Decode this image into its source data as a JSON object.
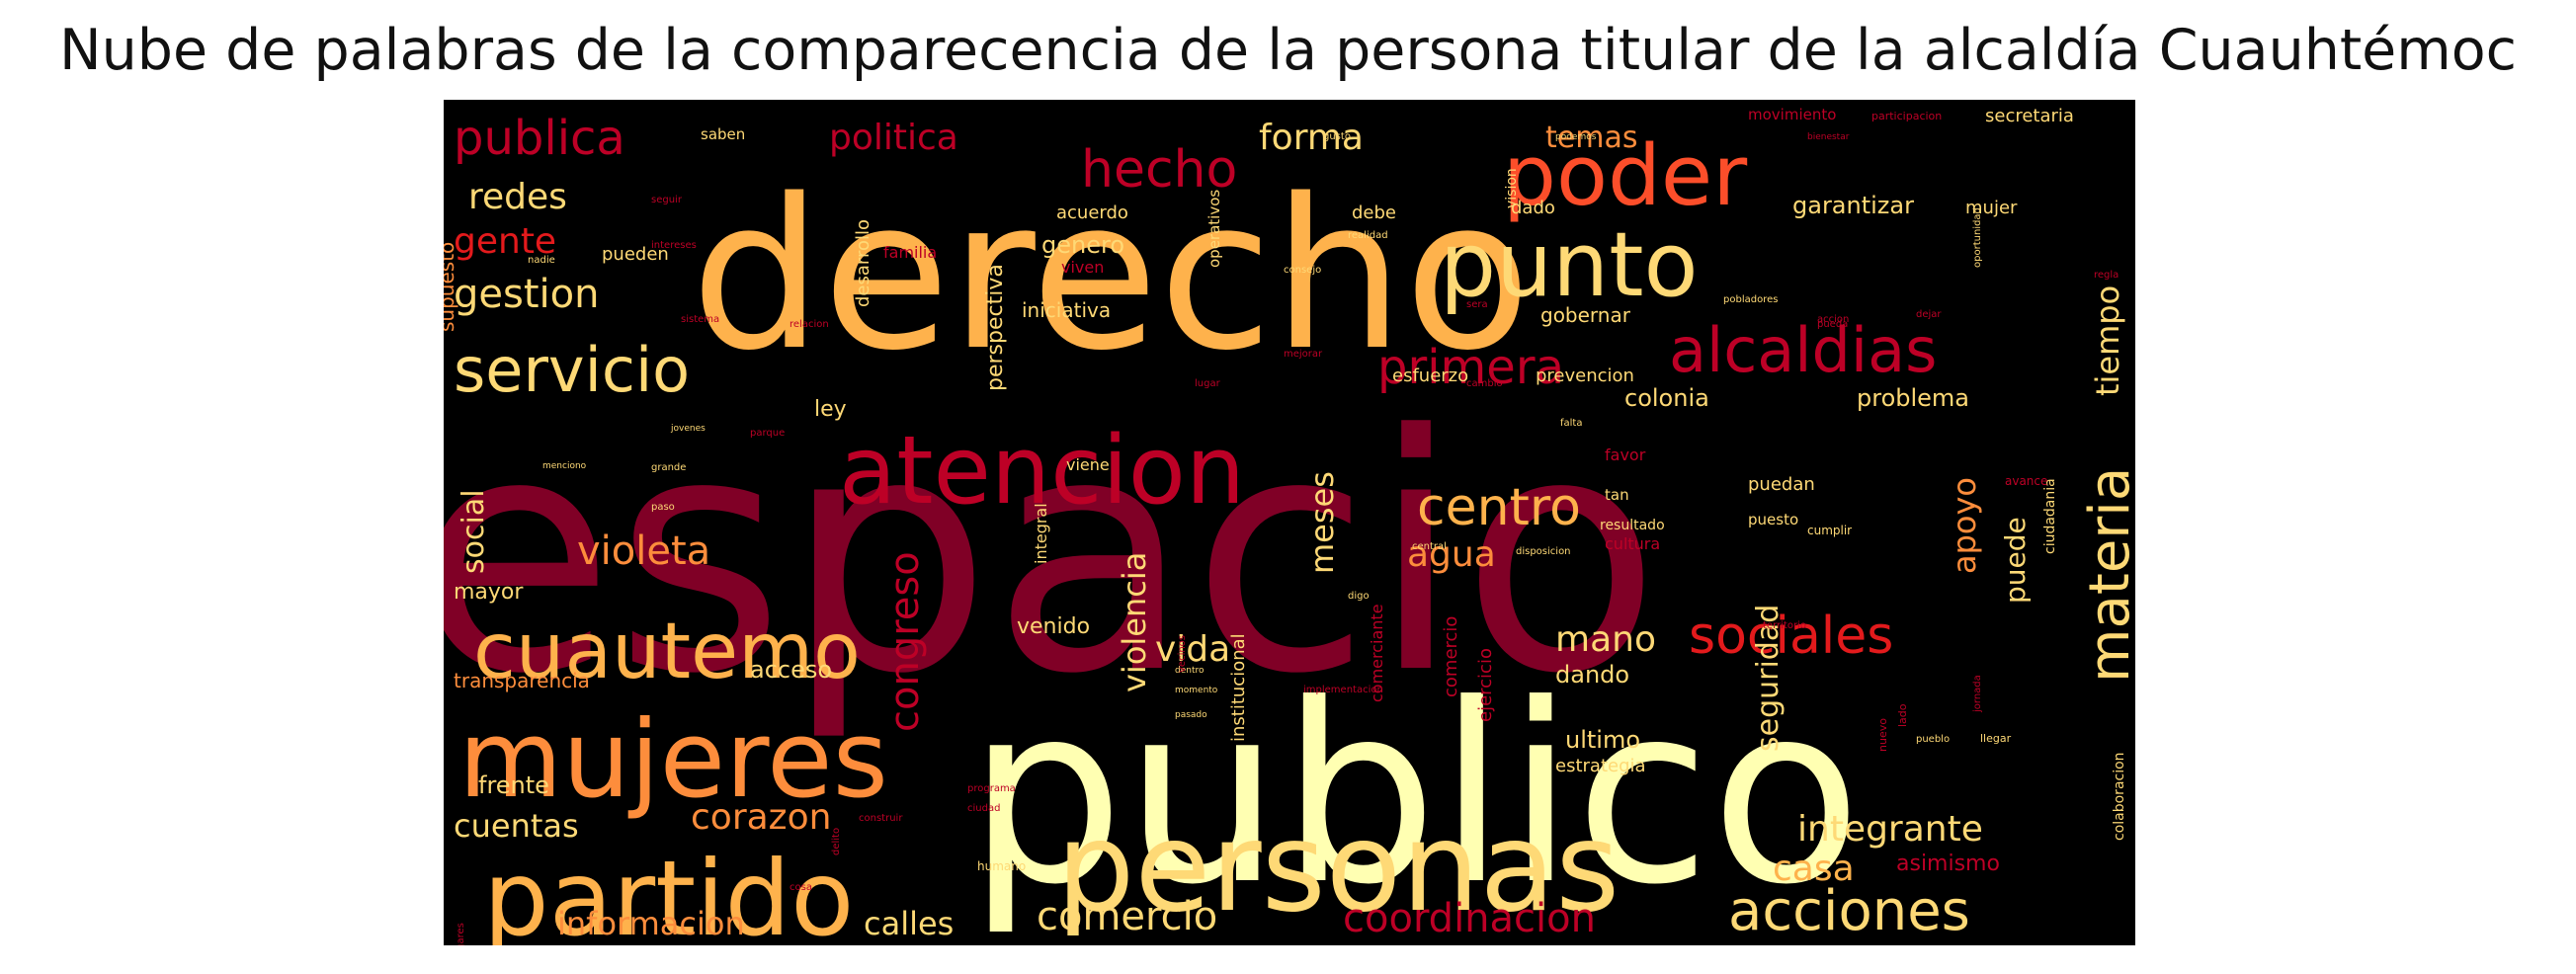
{
  "title": "Nube de palabras de la comparecencia de la persona titular de la alcaldía Cuauhtémoc",
  "colors": {
    "background": "#000000",
    "dark_red": "#800026",
    "red": "#bd0026",
    "red_orange": "#e31a1c",
    "orange_red": "#fc4e2a",
    "orange": "#fd8d3c",
    "light_orange": "#feb24c",
    "yellow_orange": "#fed976",
    "pale_yellow": "#ffffb2"
  },
  "words": [
    {
      "text": "espacio",
      "c": "#800026"
    },
    {
      "text": "publico",
      "c": "#ffffb2"
    },
    {
      "text": "derecho",
      "c": "#feb24c"
    },
    {
      "text": "personas",
      "c": "#fed976"
    },
    {
      "text": "atencion",
      "c": "#bd0026"
    },
    {
      "text": "punto",
      "c": "#fed976"
    },
    {
      "text": "poder",
      "c": "#fc4e2a"
    },
    {
      "text": "alcaldias",
      "c": "#bd0026"
    },
    {
      "text": "mujeres",
      "c": "#fd8d3c"
    },
    {
      "text": "partido",
      "c": "#feb24c"
    },
    {
      "text": "cuautemo",
      "c": "#feb24c"
    },
    {
      "text": "servicio",
      "c": "#fed976"
    },
    {
      "text": "hecho",
      "c": "#bd0026"
    },
    {
      "text": "publica",
      "c": "#bd0026"
    },
    {
      "text": "acciones",
      "c": "#fed976"
    },
    {
      "text": "primera",
      "c": "#bd0026"
    },
    {
      "text": "sociales",
      "c": "#e31a1c"
    },
    {
      "text": "materia",
      "c": "#fed976"
    },
    {
      "text": "centro",
      "c": "#feb24c"
    },
    {
      "text": "gestion",
      "c": "#fed976"
    },
    {
      "text": "violeta",
      "c": "#fd8d3c"
    },
    {
      "text": "congreso",
      "c": "#bd0026"
    },
    {
      "text": "corazon",
      "c": "#fd8d3c"
    },
    {
      "text": "comercio",
      "c": "#fed976"
    },
    {
      "text": "coordinacion",
      "c": "#bd0026"
    },
    {
      "text": "integrante",
      "c": "#fed976"
    },
    {
      "text": "casa",
      "c": "#feb24c"
    },
    {
      "text": "cuentas",
      "c": "#fed976"
    },
    {
      "text": "informacion",
      "c": "#fd8d3c"
    },
    {
      "text": "calles",
      "c": "#fed976"
    },
    {
      "text": "vida",
      "c": "#fed976"
    },
    {
      "text": "mano",
      "c": "#fed976"
    },
    {
      "text": "forma",
      "c": "#fed976"
    },
    {
      "text": "politica",
      "c": "#bd0026"
    },
    {
      "text": "temas",
      "c": "#fd8d3c"
    },
    {
      "text": "redes",
      "c": "#fed976"
    },
    {
      "text": "gente",
      "c": "#e31a1c"
    },
    {
      "text": "social",
      "c": "#fed976"
    },
    {
      "text": "violencia",
      "c": "#fed976"
    },
    {
      "text": "meses",
      "c": "#fed976"
    },
    {
      "text": "agua",
      "c": "#fd8d3c"
    },
    {
      "text": "apoyo",
      "c": "#fd8d3c"
    },
    {
      "text": "puede",
      "c": "#fed976"
    },
    {
      "text": "tiempo",
      "c": "#fed976"
    },
    {
      "text": "seguridad",
      "c": "#fed976"
    },
    {
      "text": "ultimo",
      "c": "#fed976"
    },
    {
      "text": "dando",
      "c": "#fed976"
    },
    {
      "text": "frente",
      "c": "#fed976"
    },
    {
      "text": "acceso",
      "c": "#fed976"
    },
    {
      "text": "garantizar",
      "c": "#fed976"
    },
    {
      "text": "genero",
      "c": "#fed976"
    },
    {
      "text": "colonia",
      "c": "#fed976"
    },
    {
      "text": "problema",
      "c": "#fed976"
    },
    {
      "text": "ley",
      "c": "#fed976"
    },
    {
      "text": "mayor",
      "c": "#fed976"
    },
    {
      "text": "venido",
      "c": "#fed976"
    },
    {
      "text": "perspectiva",
      "c": "#fed976"
    },
    {
      "text": "supuesto",
      "c": "#fd8d3c"
    },
    {
      "text": "asimismo",
      "c": "#bd0026"
    },
    {
      "text": "iniciativa",
      "c": "#fed976"
    },
    {
      "text": "gobernar",
      "c": "#fed976"
    },
    {
      "text": "esfuerzo",
      "c": "#fed976"
    },
    {
      "text": "prevencion",
      "c": "#fed976"
    },
    {
      "text": "estrategia",
      "c": "#fed976"
    },
    {
      "text": "institucional",
      "c": "#fed976"
    },
    {
      "text": "transparencia",
      "c": "#fd8d3c"
    },
    {
      "text": "desarrollo",
      "c": "#fed976"
    },
    {
      "text": "acuerdo",
      "c": "#fed976"
    },
    {
      "text": "debe",
      "c": "#fed976"
    },
    {
      "text": "mujer",
      "c": "#fed976"
    },
    {
      "text": "dado",
      "c": "#fed976"
    },
    {
      "text": "secretaria",
      "c": "#fed976"
    },
    {
      "text": "pueden",
      "c": "#fed976"
    },
    {
      "text": "familia",
      "c": "#bd0026"
    },
    {
      "text": "viven",
      "c": "#bd0026"
    },
    {
      "text": "operativos",
      "c": "#fed976"
    },
    {
      "text": "vision",
      "c": "#fed976"
    },
    {
      "text": "saben",
      "c": "#fed976"
    },
    {
      "text": "movimiento",
      "c": "#bd0026"
    },
    {
      "text": "participacion",
      "c": "#bd0026"
    },
    {
      "text": "puedan",
      "c": "#fed976"
    },
    {
      "text": "tan",
      "c": "#fed976"
    },
    {
      "text": "resultado",
      "c": "#fed976"
    },
    {
      "text": "puesto",
      "c": "#fed976"
    },
    {
      "text": "cumplir",
      "c": "#fed976"
    },
    {
      "text": "cultura",
      "c": "#bd0026"
    },
    {
      "text": "favor",
      "c": "#bd0026"
    },
    {
      "text": "viene",
      "c": "#fed976"
    },
    {
      "text": "integral",
      "c": "#fed976"
    },
    {
      "text": "comerciante",
      "c": "#bd0026"
    },
    {
      "text": "comercio",
      "c": "#bd0026"
    },
    {
      "text": "ejercicio",
      "c": "#bd0026"
    },
    {
      "text": "ciudadania",
      "c": "#fed976"
    },
    {
      "text": "colaboracion",
      "c": "#fed976"
    },
    {
      "text": "falta",
      "c": "#fed976"
    },
    {
      "text": "central",
      "c": "#fed976"
    },
    {
      "text": "disposicion",
      "c": "#fed976"
    },
    {
      "text": "llegar",
      "c": "#fed976"
    },
    {
      "text": "humano",
      "c": "#fed976"
    },
    {
      "text": "menos",
      "c": "#fed976"
    },
    {
      "text": "jornada",
      "c": "#bd0026"
    },
    {
      "text": "lado",
      "c": "#bd0026"
    },
    {
      "text": "nuevo",
      "c": "#bd0026"
    },
    {
      "text": "territorio",
      "c": "#bd0026"
    },
    {
      "text": "realidad",
      "c": "#fed976"
    },
    {
      "text": "consejo",
      "c": "#fed976"
    },
    {
      "text": "pueblo",
      "c": "#fed976"
    },
    {
      "text": "paso",
      "c": "#fed976"
    },
    {
      "text": "grande",
      "c": "#fed976"
    },
    {
      "text": "digo",
      "c": "#fed976"
    },
    {
      "text": "dentro",
      "c": "#fed976"
    },
    {
      "text": "momento",
      "c": "#fed976"
    },
    {
      "text": "pasado",
      "c": "#fed976"
    },
    {
      "text": "construir",
      "c": "#bd0026"
    },
    {
      "text": "delito",
      "c": "#bd0026"
    },
    {
      "text": "lugares",
      "c": "#bd0026"
    },
    {
      "text": "jovenes",
      "c": "#fed976"
    },
    {
      "text": "parque",
      "c": "#bd0026"
    },
    {
      "text": "menciono",
      "c": "#fed976"
    },
    {
      "text": "relacion",
      "c": "#bd0026"
    },
    {
      "text": "sistema",
      "c": "#bd0026"
    },
    {
      "text": "nadie",
      "c": "#fed976"
    },
    {
      "text": "intereses",
      "c": "#bd0026"
    },
    {
      "text": "seguir",
      "c": "#bd0026"
    },
    {
      "text": "podemos",
      "c": "#fed976"
    },
    {
      "text": "bienestar",
      "c": "#bd0026"
    },
    {
      "text": "gusto",
      "c": "#fed976"
    },
    {
      "text": "dejar",
      "c": "#bd0026"
    },
    {
      "text": "accion",
      "c": "#bd0026"
    },
    {
      "text": "oportunidad",
      "c": "#fed976"
    },
    {
      "text": "pobladores",
      "c": "#fed976"
    },
    {
      "text": "pueda",
      "c": "#bd0026"
    },
    {
      "text": "sera",
      "c": "#bd0026"
    },
    {
      "text": "regla",
      "c": "#bd0026"
    },
    {
      "text": "lugar",
      "c": "#bd0026"
    },
    {
      "text": "vecinos",
      "c": "#bd0026"
    },
    {
      "text": "implementacion",
      "c": "#bd0026"
    },
    {
      "text": "mejorar",
      "c": "#bd0026"
    },
    {
      "text": "cambio",
      "c": "#bd0026"
    },
    {
      "text": "programa",
      "c": "#bd0026"
    },
    {
      "text": "ciudad",
      "c": "#bd0026"
    },
    {
      "text": "avance",
      "c": "#bd0026"
    },
    {
      "text": "cosa",
      "c": "#bd0026"
    },
    {
      "text": "tema",
      "c": "#bd0026"
    }
  ]
}
